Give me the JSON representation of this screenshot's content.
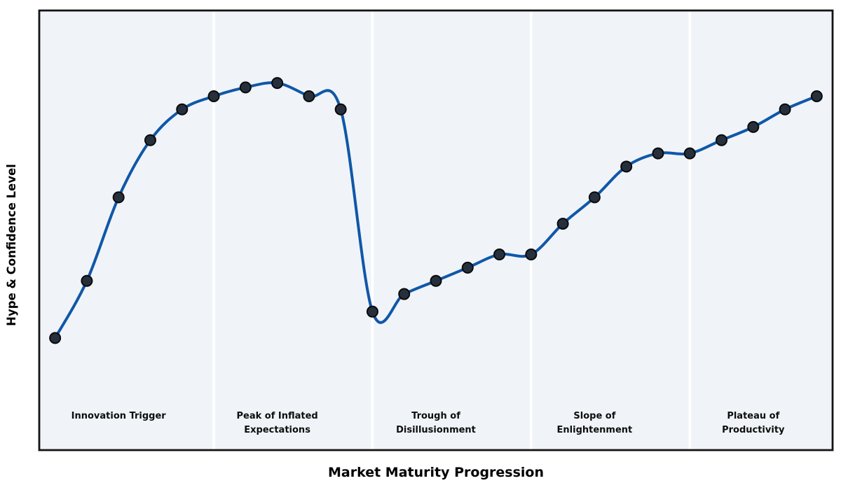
{
  "figure": {
    "title": "",
    "xlabel": "Market Maturity Progression",
    "ylabel": "Hype & Confidence Level"
  },
  "chart_data": {
    "type": "line",
    "title": "",
    "xlabel": "Market Maturity Progression",
    "ylabel": "Hype & Confidence Level",
    "x": [
      1,
      2,
      3,
      4,
      5,
      6,
      7,
      8,
      9,
      10,
      11,
      12,
      13,
      14,
      15,
      16,
      17,
      18,
      19,
      20,
      21,
      22,
      23,
      24,
      25
    ],
    "series": [
      {
        "name": "Hype & Confidence Level",
        "values": [
          5,
          18,
          37,
          50,
          57,
          60,
          62,
          63,
          60,
          57,
          11,
          15,
          18,
          21,
          24,
          24,
          31,
          37,
          44,
          47,
          47,
          50,
          53,
          57,
          60
        ]
      }
    ],
    "xlim": [
      0.5,
      25.5
    ],
    "ylim": [
      -20.5,
      79.5
    ],
    "grid": false,
    "axis_ticks": "none",
    "legend": "none",
    "interpolation": "smooth-spline",
    "dividers_x": [
      6,
      11,
      16,
      21
    ],
    "phases": [
      {
        "slug": "innovation-trigger",
        "label_lines": [
          "Innovation Trigger"
        ],
        "label_x": 3
      },
      {
        "slug": "peak-of-inflated-expectations",
        "label_lines": [
          "Peak of Inflated",
          "Expectations"
        ],
        "label_x": 8
      },
      {
        "slug": "trough-of-disillusionment",
        "label_lines": [
          "Trough of",
          "Disillusionment"
        ],
        "label_x": 13
      },
      {
        "slug": "slope-of-enlightenment",
        "label_lines": [
          "Slope of",
          "Enlightenment"
        ],
        "label_x": 18
      },
      {
        "slug": "plateau-of-productivity",
        "label_lines": [
          "Plateau of",
          "Productivity"
        ],
        "label_x": 23
      }
    ],
    "colors": {
      "line": "#1057a8",
      "marker_fill": "#26303d",
      "marker_edge": "#0a0a0a",
      "plot_bg": "#f0f4f8",
      "divider": "#ffffff",
      "border": "#141414",
      "label_text": "#0d0d0d"
    }
  }
}
